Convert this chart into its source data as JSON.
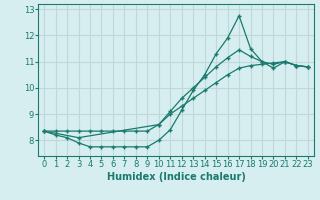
{
  "title": "",
  "xlabel": "Humidex (Indice chaleur)",
  "ylabel": "",
  "bg_color": "#d6eef0",
  "grid_color": "#c0d8da",
  "line_color": "#1a7a6e",
  "xlim": [
    -0.5,
    23.5
  ],
  "ylim": [
    7.4,
    13.2
  ],
  "xticks": [
    0,
    1,
    2,
    3,
    4,
    5,
    6,
    7,
    8,
    9,
    10,
    11,
    12,
    13,
    14,
    15,
    16,
    17,
    18,
    19,
    20,
    21,
    22,
    23
  ],
  "yticks": [
    8,
    9,
    10,
    11,
    12,
    13
  ],
  "line1_x": [
    0,
    1,
    2,
    3,
    4,
    5,
    6,
    7,
    8,
    9,
    10,
    11,
    12,
    13,
    14,
    15,
    16,
    17,
    18,
    19,
    20,
    21,
    22,
    23
  ],
  "line1_y": [
    8.35,
    8.35,
    8.35,
    8.35,
    8.35,
    8.35,
    8.35,
    8.35,
    8.35,
    8.35,
    8.6,
    9.0,
    9.3,
    9.6,
    9.9,
    10.2,
    10.5,
    10.75,
    10.85,
    10.9,
    10.95,
    11.0,
    10.85,
    10.8
  ],
  "line2_x": [
    0,
    1,
    2,
    3,
    4,
    5,
    6,
    7,
    8,
    9,
    10,
    11,
    12,
    13,
    14,
    15,
    16,
    17,
    18,
    19,
    20,
    21,
    22,
    23
  ],
  "line2_y": [
    8.35,
    8.2,
    8.1,
    7.9,
    7.75,
    7.75,
    7.75,
    7.75,
    7.75,
    7.75,
    8.0,
    8.4,
    9.15,
    9.9,
    10.5,
    11.3,
    11.9,
    12.75,
    11.5,
    11.0,
    10.9,
    11.0,
    10.85,
    10.8
  ],
  "line3_x": [
    0,
    3,
    10,
    11,
    12,
    13,
    14,
    15,
    16,
    17,
    18,
    19,
    20,
    21,
    22,
    23
  ],
  "line3_y": [
    8.35,
    8.1,
    8.6,
    9.1,
    9.6,
    10.0,
    10.4,
    10.8,
    11.15,
    11.45,
    11.2,
    11.0,
    10.75,
    11.0,
    10.85,
    10.8
  ]
}
